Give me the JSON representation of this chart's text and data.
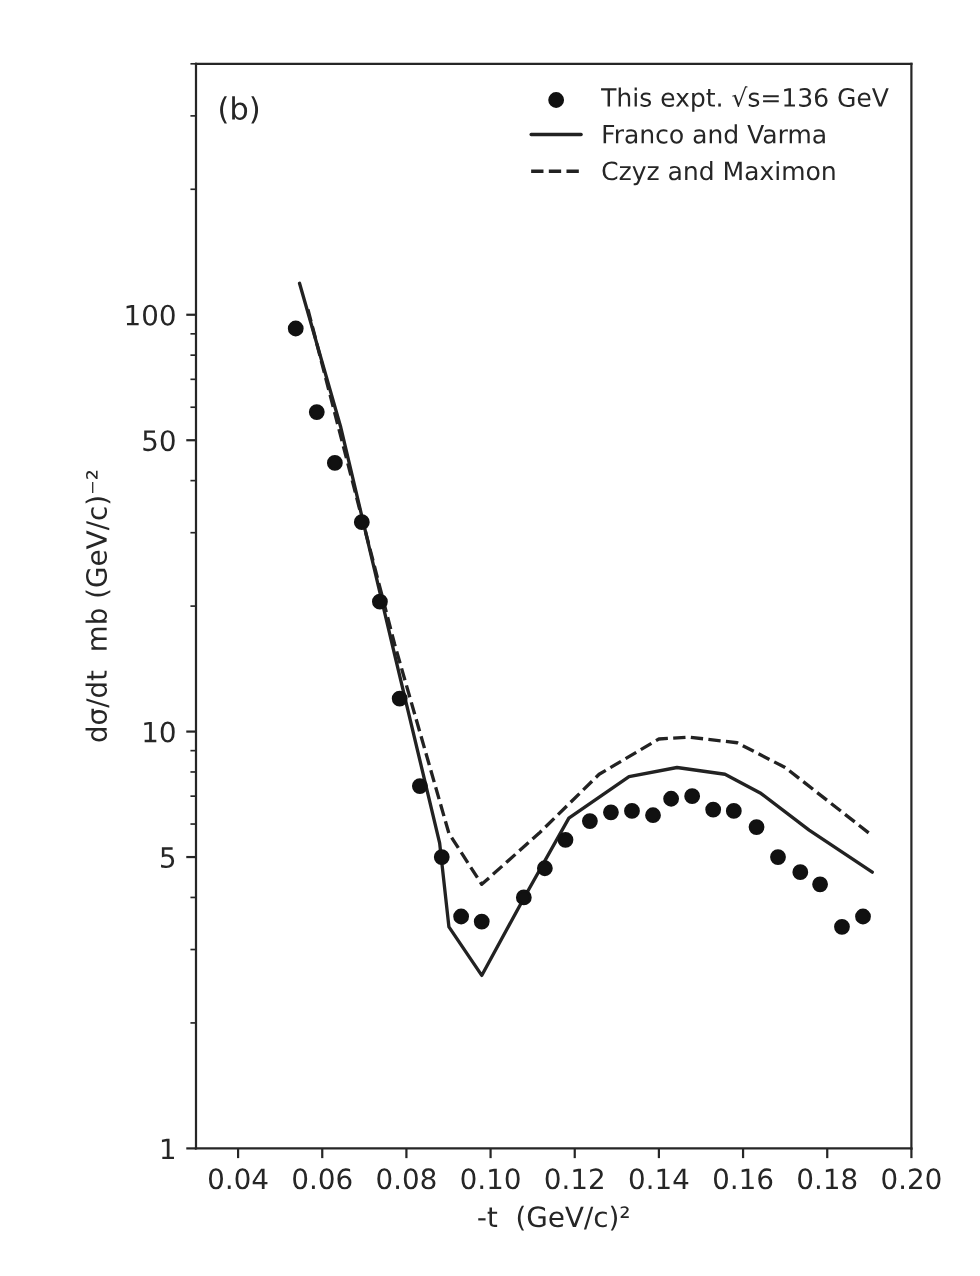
{
  "chart_data": {
    "type": "scatter",
    "xlabel": "-t  (GeV/c)²",
    "ylabel": "dσ/dt  mb (GeV/c)⁻²",
    "annotations": [
      "(b)"
    ],
    "log": "y",
    "xlim": [
      0.03,
      0.2
    ],
    "ylim": [
      1,
      400
    ],
    "xticks": [
      {
        "value": 0.04,
        "label": "0.04"
      },
      {
        "value": 0.06,
        "label": "0.06"
      },
      {
        "value": 0.08,
        "label": "0.08"
      },
      {
        "value": 0.1,
        "label": "0.10"
      },
      {
        "value": 0.12,
        "label": "0.12"
      },
      {
        "value": 0.14,
        "label": "0.14"
      },
      {
        "value": 0.16,
        "label": "0.16"
      },
      {
        "value": 0.18,
        "label": "0.18"
      },
      {
        "value": 0.2,
        "label": "0.20"
      }
    ],
    "yticks": [
      1,
      5,
      10,
      50,
      100
    ],
    "grid": false,
    "legend": "top right",
    "series": [
      {
        "name": "This expt. √s=136 GeV",
        "marker": "circle",
        "color": "#111111",
        "x": [
          0.0537,
          0.0587,
          0.063,
          0.0694,
          0.0737,
          0.0784,
          0.0832,
          0.0884,
          0.093,
          0.0979,
          0.1079,
          0.1129,
          0.1178,
          0.1236,
          0.1286,
          0.1336,
          0.1386,
          0.1429,
          0.1479,
          0.1529,
          0.1578,
          0.1632,
          0.1683,
          0.1736,
          0.1783,
          0.1835,
          0.1885
        ],
        "values": [
          92.7,
          58.4,
          44.1,
          31.8,
          20.5,
          12.0,
          7.4,
          5.0,
          3.6,
          3.5,
          4.0,
          4.7,
          5.5,
          6.1,
          6.4,
          6.45,
          6.3,
          6.9,
          7.0,
          6.5,
          6.45,
          5.9,
          5.0,
          4.6,
          4.3,
          3.4,
          3.6
        ]
      },
      {
        "name": "Franco and Varma",
        "type": "line",
        "line_style": "solid",
        "color": "#222222",
        "x": [
          0.0546,
          0.0644,
          0.0772,
          0.0879,
          0.0901,
          0.0979,
          0.108,
          0.1186,
          0.1329,
          0.1443,
          0.1557,
          0.1643,
          0.1757,
          0.1907
        ],
        "values": [
          119,
          53.7,
          15.3,
          5.4,
          3.4,
          2.6,
          4.0,
          6.2,
          7.8,
          8.2,
          7.9,
          7.1,
          5.8,
          4.6
        ]
      },
      {
        "name": "Czyz and Maximon",
        "type": "line",
        "line_style": "dashed",
        "color": "#222222",
        "x": [
          0.0566,
          0.0772,
          0.0901,
          0.0979,
          0.1115,
          0.1258,
          0.14,
          0.1471,
          0.1586,
          0.17,
          0.19
        ],
        "values": [
          103,
          16.2,
          5.7,
          4.3,
          5.7,
          7.9,
          9.6,
          9.7,
          9.4,
          8.2,
          5.7
        ]
      }
    ]
  }
}
